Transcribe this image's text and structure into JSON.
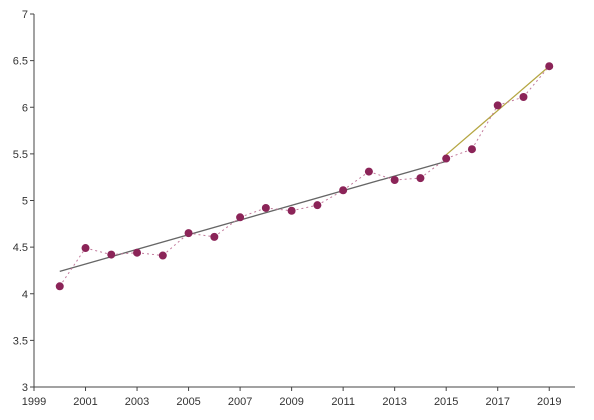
{
  "chart_data": {
    "type": "scatter",
    "title": "",
    "xlabel": "",
    "ylabel": "",
    "xlim": [
      1999,
      2020
    ],
    "ylim": [
      3,
      7
    ],
    "x_ticks": [
      "1999",
      "2001",
      "2003",
      "2005",
      "2007",
      "2009",
      "2011",
      "2013",
      "2015",
      "2017",
      "2019"
    ],
    "y_ticks": [
      "3",
      "3.5",
      "4",
      "4.5",
      "5",
      "5.5",
      "6",
      "6.5",
      "7"
    ],
    "grid": false,
    "legend": "none",
    "series": [
      {
        "marker_color": "#8b2458",
        "connector_color": "#c27a9c",
        "connector_style": "dotted",
        "x": [
          2000,
          2001,
          2002,
          2003,
          2004,
          2005,
          2006,
          2007,
          2008,
          2009,
          2010,
          2011,
          2012,
          2013,
          2014,
          2015,
          2016,
          2017,
          2018,
          2019
        ],
        "y": [
          4.08,
          4.49,
          4.42,
          4.44,
          4.41,
          4.65,
          4.61,
          4.82,
          4.92,
          4.89,
          4.95,
          5.11,
          5.31,
          5.22,
          5.24,
          5.45,
          5.55,
          6.02,
          6.11,
          6.44
        ]
      }
    ],
    "trendlines": [
      {
        "color": "#666666",
        "x": [
          2000,
          2015
        ],
        "y": [
          4.24,
          5.42
        ]
      },
      {
        "color": "#b5a642",
        "x": [
          2015,
          2019
        ],
        "y": [
          5.49,
          6.44
        ]
      }
    ]
  }
}
